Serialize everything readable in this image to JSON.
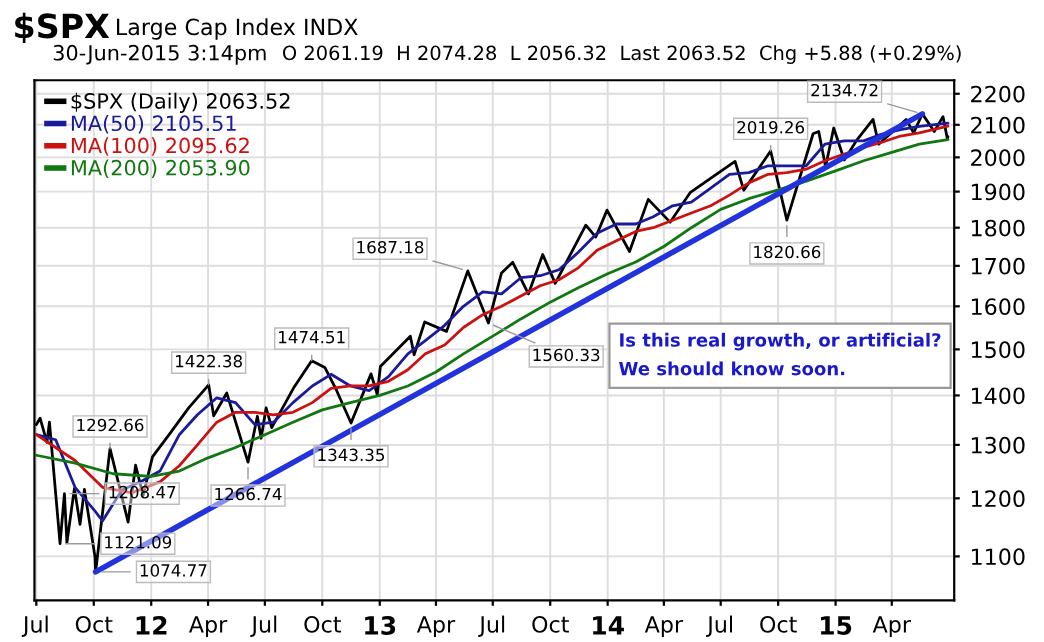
{
  "chart_data": {
    "type": "line",
    "title": "$SPX",
    "subtitle": "Large Cap Index INDX",
    "annotations": [
      "30-Jun-2015 3:14pm",
      "O 2061.19  H 2074.28  L 2056.32  Last 2063.52  Chg +5.88 (+0.29%)",
      "Is this real growth, or artificial?\nWe should know soon.",
      {
        "text": "1208.47",
        "x": "2011-08-15",
        "y": 1208.47
      },
      {
        "text": "1121.09",
        "x": "2011-08-08",
        "y": 1121.09
      },
      {
        "text": "1074.77",
        "x": "2011-10-04",
        "y": 1074.77
      },
      {
        "text": "1292.66",
        "x": "2011-10-27",
        "y": 1292.66
      },
      {
        "text": "1422.38",
        "x": "2012-04-02",
        "y": 1422.38
      },
      {
        "text": "1266.74",
        "x": "2012-06-04",
        "y": 1266.74
      },
      {
        "text": "1474.51",
        "x": "2012-09-14",
        "y": 1474.51
      },
      {
        "text": "1343.35",
        "x": "2012-11-16",
        "y": 1343.35
      },
      {
        "text": "1687.18",
        "x": "2013-05-22",
        "y": 1687.18
      },
      {
        "text": "1560.33",
        "x": "2013-06-24",
        "y": 1560.33
      },
      {
        "text": "2019.26",
        "x": "2014-09-19",
        "y": 2019.26
      },
      {
        "text": "1820.66",
        "x": "2014-10-15",
        "y": 1820.66
      },
      {
        "text": "2134.72",
        "x": "2015-05-20",
        "y": 2134.72
      }
    ],
    "log": "y",
    "grid": true,
    "legend": "top left",
    "xlim": [
      "2011-06-28",
      "2015-07-10"
    ],
    "xticks": [
      {
        "value": "2011-07-01",
        "label": "Jul"
      },
      {
        "value": "2011-10-01",
        "label": "Oct"
      },
      {
        "value": "2012-01-01",
        "label": "12"
      },
      {
        "value": "2012-04-01",
        "label": "Apr"
      },
      {
        "value": "2012-07-01",
        "label": "Jul"
      },
      {
        "value": "2012-10-01",
        "label": "Oct"
      },
      {
        "value": "2013-01-01",
        "label": "13"
      },
      {
        "value": "2013-04-01",
        "label": "Apr"
      },
      {
        "value": "2013-07-01",
        "label": "Jul"
      },
      {
        "value": "2013-10-01",
        "label": "Oct"
      },
      {
        "value": "2014-01-01",
        "label": "14"
      },
      {
        "value": "2014-04-01",
        "label": "Apr"
      },
      {
        "value": "2014-07-01",
        "label": "Jul"
      },
      {
        "value": "2014-10-01",
        "label": "Oct"
      },
      {
        "value": "2015-01-01",
        "label": "15"
      },
      {
        "value": "2015-04-01",
        "label": "Apr"
      }
    ],
    "ylim": [
      1030,
      2245
    ],
    "yticks": [
      1100,
      1200,
      1300,
      1400,
      1500,
      1600,
      1700,
      1800,
      1900,
      2000,
      2100,
      2200
    ],
    "series": [
      {
        "name": "$SPX (Daily) 2063.52",
        "color": "#000000",
        "x": [
          "2011-07-01",
          "2011-07-07",
          "2011-07-18",
          "2011-07-22",
          "2011-08-08",
          "2011-08-15",
          "2011-08-19",
          "2011-08-31",
          "2011-09-09",
          "2011-09-16",
          "2011-10-03",
          "2011-10-04",
          "2011-10-27",
          "2011-11-25",
          "2011-12-07",
          "2011-12-19",
          "2012-01-03",
          "2012-02-01",
          "2012-03-01",
          "2012-04-02",
          "2012-04-10",
          "2012-05-01",
          "2012-06-04",
          "2012-06-19",
          "2012-06-25",
          "2012-07-03",
          "2012-07-12",
          "2012-08-17",
          "2012-09-14",
          "2012-10-05",
          "2012-10-23",
          "2012-11-16",
          "2012-12-18",
          "2012-12-28",
          "2013-01-02",
          "2013-02-19",
          "2013-02-25",
          "2013-03-14",
          "2013-04-18",
          "2013-05-22",
          "2013-06-24",
          "2013-07-15",
          "2013-08-02",
          "2013-08-27",
          "2013-09-19",
          "2013-10-09",
          "2013-11-27",
          "2013-12-13",
          "2013-12-31",
          "2014-02-05",
          "2014-03-07",
          "2014-04-11",
          "2014-05-13",
          "2014-06-24",
          "2014-07-24",
          "2014-08-07",
          "2014-09-19",
          "2014-10-15",
          "2014-11-26",
          "2014-12-05",
          "2014-12-16",
          "2014-12-29",
          "2015-01-15",
          "2015-02-03",
          "2015-03-02",
          "2015-03-11",
          "2015-04-24",
          "2015-05-06",
          "2015-05-20",
          "2015-06-08",
          "2015-06-22",
          "2015-06-29",
          "2015-06-30"
        ],
        "values": [
          1340,
          1353,
          1305,
          1345,
          1121.09,
          1208.47,
          1123,
          1218,
          1154,
          1216,
          1099,
          1074.77,
          1292.66,
          1158,
          1261,
          1205,
          1277,
          1324,
          1374,
          1422.38,
          1358,
          1405,
          1266.74,
          1357,
          1313,
          1374,
          1334,
          1418,
          1474.51,
          1460,
          1413,
          1343.35,
          1446,
          1402,
          1462,
          1530,
          1488,
          1563,
          1541,
          1687.18,
          1560.33,
          1682,
          1709,
          1630,
          1729,
          1656,
          1807,
          1775,
          1848,
          1737,
          1878,
          1815,
          1897,
          1950,
          1988,
          1904,
          2019.26,
          1820.66,
          2072,
          2079,
          1972,
          2090,
          1992,
          2050,
          2117,
          2040,
          2117,
          2075,
          2134.72,
          2079,
          2126,
          2057,
          2063.52
        ]
      },
      {
        "name": "MA(50) 2105.51",
        "color": "#1a1a9a",
        "x": [
          "2011-07-01",
          "2011-08-01",
          "2011-09-01",
          "2011-10-01",
          "2011-10-15",
          "2011-11-15",
          "2011-12-15",
          "2012-01-15",
          "2012-02-15",
          "2012-03-15",
          "2012-04-15",
          "2012-05-15",
          "2012-06-15",
          "2012-07-15",
          "2012-08-15",
          "2012-09-15",
          "2012-10-15",
          "2012-11-15",
          "2012-12-15",
          "2013-01-15",
          "2013-02-15",
          "2013-03-15",
          "2013-04-15",
          "2013-05-15",
          "2013-06-15",
          "2013-07-15",
          "2013-08-15",
          "2013-09-15",
          "2013-10-15",
          "2013-11-15",
          "2013-12-15",
          "2014-01-15",
          "2014-02-15",
          "2014-03-15",
          "2014-04-15",
          "2014-05-15",
          "2014-06-15",
          "2014-07-15",
          "2014-08-15",
          "2014-09-15",
          "2014-10-15",
          "2014-11-15",
          "2014-12-15",
          "2015-01-15",
          "2015-02-15",
          "2015-03-15",
          "2015-04-15",
          "2015-05-15",
          "2015-06-30"
        ],
        "values": [
          1320,
          1310,
          1220,
          1180,
          1160,
          1215,
          1230,
          1250,
          1320,
          1360,
          1395,
          1385,
          1340,
          1345,
          1385,
          1420,
          1445,
          1420,
          1410,
          1440,
          1490,
          1520,
          1555,
          1600,
          1635,
          1630,
          1670,
          1675,
          1690,
          1735,
          1785,
          1810,
          1810,
          1830,
          1860,
          1870,
          1910,
          1950,
          1955,
          1975,
          1975,
          1975,
          2040,
          2050,
          2050,
          2070,
          2085,
          2095,
          2105.51
        ]
      },
      {
        "name": "MA(100) 2095.62",
        "color": "#cc1111",
        "x": [
          "2011-07-01",
          "2011-09-01",
          "2011-10-15",
          "2011-12-01",
          "2012-01-15",
          "2012-02-15",
          "2012-03-15",
          "2012-04-15",
          "2012-05-15",
          "2012-06-15",
          "2012-07-15",
          "2012-08-15",
          "2012-09-15",
          "2012-10-15",
          "2012-11-15",
          "2012-12-15",
          "2013-01-15",
          "2013-02-15",
          "2013-03-15",
          "2013-04-15",
          "2013-05-15",
          "2013-06-15",
          "2013-07-15",
          "2013-08-15",
          "2013-09-15",
          "2013-10-15",
          "2013-11-15",
          "2013-12-15",
          "2014-01-15",
          "2014-02-15",
          "2014-03-15",
          "2014-04-15",
          "2014-05-15",
          "2014-06-15",
          "2014-07-15",
          "2014-08-15",
          "2014-09-15",
          "2014-10-15",
          "2014-11-15",
          "2014-12-15",
          "2015-01-15",
          "2015-02-15",
          "2015-03-15",
          "2015-04-15",
          "2015-05-15",
          "2015-06-30"
        ],
        "values": [
          1320,
          1270,
          1220,
          1210,
          1230,
          1260,
          1300,
          1345,
          1365,
          1365,
          1360,
          1365,
          1385,
          1415,
          1420,
          1420,
          1430,
          1455,
          1490,
          1510,
          1550,
          1580,
          1600,
          1625,
          1650,
          1665,
          1695,
          1740,
          1765,
          1790,
          1800,
          1820,
          1840,
          1860,
          1890,
          1925,
          1950,
          1955,
          1965,
          1990,
          2010,
          2030,
          2045,
          2065,
          2075,
          2095.62
        ]
      },
      {
        "name": "MA(200) 2053.90",
        "color": "#117711",
        "x": [
          "2011-07-01",
          "2011-09-01",
          "2011-11-01",
          "2012-01-01",
          "2012-02-15",
          "2012-04-01",
          "2012-05-15",
          "2012-07-01",
          "2012-08-15",
          "2012-10-01",
          "2012-11-15",
          "2013-01-01",
          "2013-02-15",
          "2013-04-01",
          "2013-05-15",
          "2013-07-01",
          "2013-08-15",
          "2013-10-01",
          "2013-11-15",
          "2014-01-01",
          "2014-02-15",
          "2014-04-01",
          "2014-05-15",
          "2014-07-01",
          "2014-08-15",
          "2014-10-01",
          "2014-11-15",
          "2015-01-01",
          "2015-02-15",
          "2015-04-01",
          "2015-05-15",
          "2015-06-30"
        ],
        "values": [
          1280,
          1265,
          1245,
          1240,
          1250,
          1275,
          1295,
          1320,
          1345,
          1370,
          1385,
          1400,
          1420,
          1450,
          1490,
          1530,
          1570,
          1610,
          1645,
          1680,
          1710,
          1750,
          1800,
          1850,
          1880,
          1905,
          1930,
          1960,
          1990,
          2015,
          2040,
          2053.9
        ]
      },
      {
        "color": "#2233dd",
        "x": [
          "2011-10-04",
          "2015-05-20"
        ],
        "values": [
          1074.77,
          2134.72
        ]
      }
    ]
  }
}
